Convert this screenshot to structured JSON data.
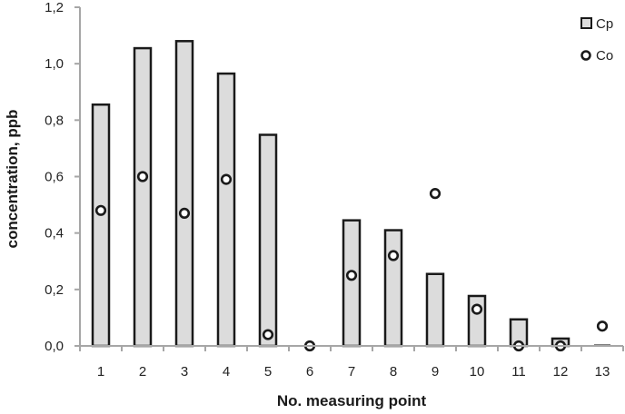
{
  "chart_data": {
    "type": "bar",
    "title": "",
    "xlabel": "No. measuring point",
    "ylabel": "concentration, ppb",
    "ylim": [
      0,
      1.2
    ],
    "yticks": [
      "0,0",
      "0,2",
      "0,4",
      "0,6",
      "0,8",
      "1,0",
      "1,2"
    ],
    "grid": false,
    "legend_position": "top-right",
    "categories": [
      "1",
      "2",
      "3",
      "4",
      "5",
      "6",
      "7",
      "8",
      "9",
      "10",
      "11",
      "12",
      "13"
    ],
    "series": [
      {
        "name": "Cp",
        "kind": "bar",
        "color": "#dcdcdc",
        "edge_color": "#1a1a1a",
        "values": [
          0.855,
          1.055,
          1.08,
          0.965,
          0.748,
          0.0,
          0.445,
          0.41,
          0.255,
          0.177,
          0.094,
          0.026,
          0.003
        ]
      },
      {
        "name": "Co",
        "kind": "marker-circle-open",
        "color": "#1a1a1a",
        "values": [
          0.48,
          0.6,
          0.47,
          0.59,
          0.04,
          0.0,
          0.25,
          0.32,
          0.54,
          0.13,
          0.0,
          0.0,
          0.07
        ]
      }
    ]
  }
}
